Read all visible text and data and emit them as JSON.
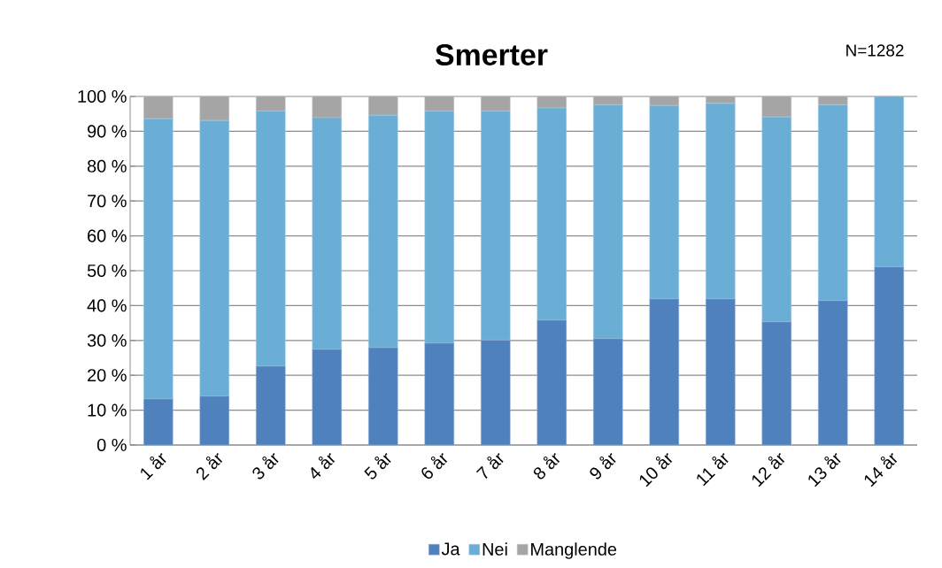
{
  "chart_data": {
    "type": "bar",
    "title": "Smerter",
    "annotations": [
      "N=1282"
    ],
    "categories": [
      "1 år",
      "2 år",
      "3 år",
      "4 år",
      "5 år",
      "6 år",
      "7 år",
      "8 år",
      "9 år",
      "10 år",
      "11 år",
      "12 år",
      "13 år",
      "14 år"
    ],
    "stacked": true,
    "series": [
      {
        "name": "Ja",
        "color": "#4f81bd",
        "values": [
          13.2,
          14.0,
          22.6,
          27.4,
          27.9,
          29.2,
          30.1,
          35.8,
          30.5,
          41.9,
          41.9,
          35.3,
          41.4,
          51.1
        ]
      },
      {
        "name": "Nei",
        "color": "#6aaed6",
        "values": [
          80.4,
          79.1,
          73.2,
          66.5,
          66.7,
          66.6,
          65.7,
          60.9,
          67.1,
          55.5,
          56.1,
          58.8,
          56.2,
          48.9
        ]
      },
      {
        "name": "Manglende",
        "color": "#a5a5a5",
        "values": [
          6.4,
          6.9,
          4.2,
          6.1,
          5.4,
          4.2,
          4.2,
          3.3,
          2.4,
          2.6,
          2.0,
          5.9,
          2.4,
          0
        ]
      }
    ],
    "ylim": [
      0,
      100
    ],
    "yticks": [
      {
        "value": 0,
        "label": "0 %"
      },
      {
        "value": 10,
        "label": "10 %"
      },
      {
        "value": 20,
        "label": "20 %"
      },
      {
        "value": 30,
        "label": "30 %"
      },
      {
        "value": 40,
        "label": "40 %"
      },
      {
        "value": 50,
        "label": "50 %"
      },
      {
        "value": 60,
        "label": "60 %"
      },
      {
        "value": 70,
        "label": "70 %"
      },
      {
        "value": 80,
        "label": "80 %"
      },
      {
        "value": 90,
        "label": "90 %"
      },
      {
        "value": 100,
        "label": "100 %"
      }
    ],
    "grid": "y",
    "legend": "bottom"
  }
}
